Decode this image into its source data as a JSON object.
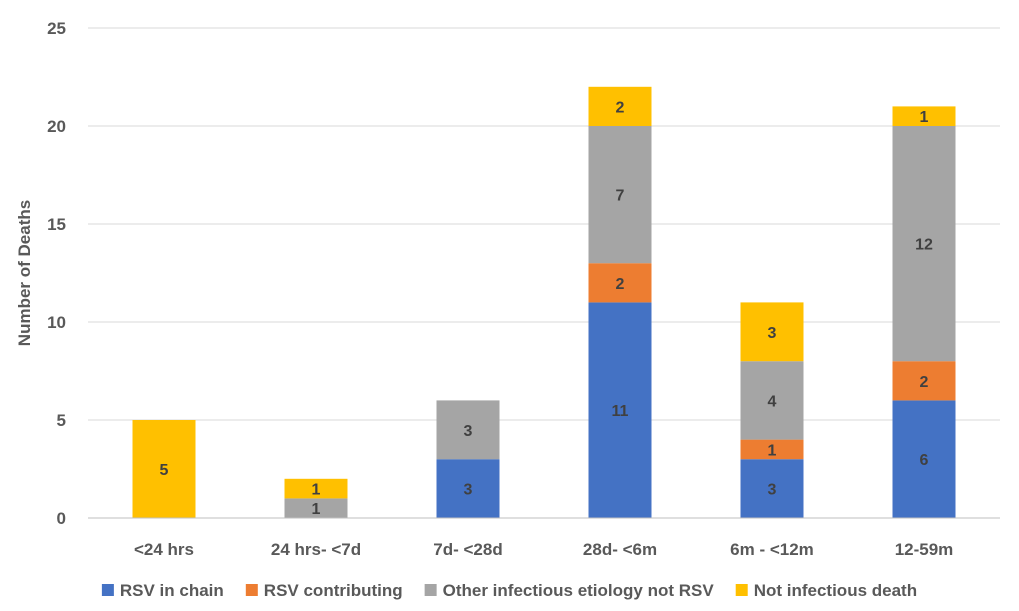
{
  "chart_data": {
    "type": "bar",
    "stacked": true,
    "title": "",
    "xlabel": "",
    "ylabel": "Number of Deaths",
    "ylim": [
      0,
      25
    ],
    "yticks": [
      0,
      5,
      10,
      15,
      20,
      25
    ],
    "grid": "horizontal",
    "legend_position": "bottom",
    "categories": [
      "<24 hrs",
      "24 hrs- <7d",
      "7d- <28d",
      "28d- <6m",
      "6m - <12m",
      "12-59m"
    ],
    "series": [
      {
        "name": "RSV in chain",
        "color": "#4472C4",
        "label_color": "#404040",
        "values": [
          0,
          0,
          3,
          11,
          3,
          6
        ]
      },
      {
        "name": "RSV contributing",
        "color": "#ED7D31",
        "label_color": "#404040",
        "values": [
          0,
          0,
          0,
          2,
          1,
          2
        ]
      },
      {
        "name": "Other infectious etiology not RSV",
        "color": "#A5A5A5",
        "label_color": "#404040",
        "values": [
          0,
          1,
          3,
          7,
          4,
          12
        ]
      },
      {
        "name": "Not infectious death",
        "color": "#FFC000",
        "label_color": "#404040",
        "values": [
          5,
          1,
          0,
          2,
          3,
          1
        ]
      }
    ]
  }
}
